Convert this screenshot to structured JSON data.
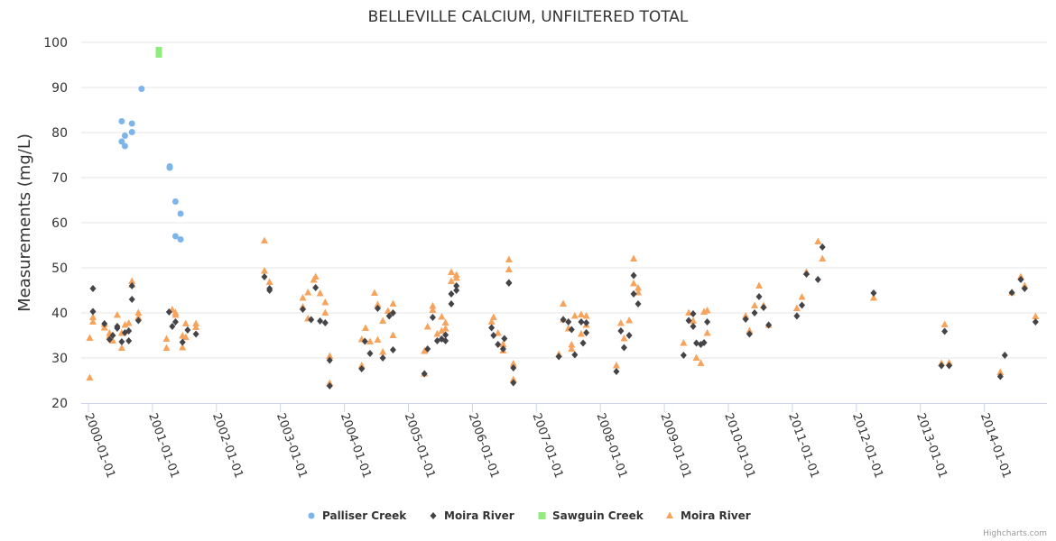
{
  "chart_data": {
    "type": "scatter",
    "title": "BELLEVILLE CALCIUM, UNFILTERED TOTAL",
    "xlabel": "",
    "ylabel": "Measurements (mg/L)",
    "ylim": [
      20,
      100
    ],
    "xlim": [
      "2000-01-01",
      "2014-12-15"
    ],
    "yticks": [
      20,
      30,
      40,
      50,
      60,
      70,
      80,
      90,
      100
    ],
    "xticks": [
      "2000-01-01",
      "2001-01-01",
      "2002-01-01",
      "2003-01-01",
      "2004-01-01",
      "2005-01-01",
      "2006-01-01",
      "2007-01-01",
      "2008-01-01",
      "2009-01-01",
      "2010-01-01",
      "2011-01-01",
      "2012-01-01",
      "2013-01-01",
      "2014-01-01"
    ],
    "grid": true,
    "legend_position": "bottom-center",
    "credits": "Highcharts.com",
    "series": [
      {
        "name": "Palliser Creek",
        "marker": "circle",
        "color": "#7cb5ec",
        "points": [
          [
            2000.52,
            82.5
          ],
          [
            2000.52,
            78.0
          ],
          [
            2000.57,
            79.3
          ],
          [
            2000.57,
            77.0
          ],
          [
            2000.68,
            82.0
          ],
          [
            2000.68,
            80.1
          ],
          [
            2000.83,
            89.7
          ],
          [
            2001.27,
            72.5
          ],
          [
            2001.27,
            72.2
          ],
          [
            2001.36,
            64.7
          ],
          [
            2001.36,
            57.0
          ],
          [
            2001.44,
            62.0
          ],
          [
            2001.44,
            56.3
          ]
        ]
      },
      {
        "name": "Moira River",
        "marker": "diamond",
        "color": "#434348",
        "points": [
          [
            2000.07,
            45.4
          ],
          [
            2000.07,
            40.3
          ],
          [
            2000.25,
            37.6
          ],
          [
            2000.33,
            34.1
          ],
          [
            2000.38,
            35.0
          ],
          [
            2000.45,
            37.0
          ],
          [
            2000.45,
            36.6
          ],
          [
            2000.52,
            33.6
          ],
          [
            2000.57,
            35.6
          ],
          [
            2000.63,
            33.8
          ],
          [
            2000.63,
            36.0
          ],
          [
            2000.68,
            46.0
          ],
          [
            2000.68,
            43.0
          ],
          [
            2000.78,
            38.3
          ],
          [
            2001.26,
            40.2
          ],
          [
            2001.31,
            37.0
          ],
          [
            2001.36,
            38.0
          ],
          [
            2001.47,
            33.5
          ],
          [
            2001.55,
            36.2
          ],
          [
            2001.68,
            35.3
          ],
          [
            2002.75,
            48.0
          ],
          [
            2002.83,
            45.4
          ],
          [
            2002.83,
            45.0
          ],
          [
            2003.35,
            40.8
          ],
          [
            2003.48,
            38.5
          ],
          [
            2003.55,
            45.6
          ],
          [
            2003.62,
            38.2
          ],
          [
            2003.7,
            37.8
          ],
          [
            2003.77,
            29.5
          ],
          [
            2003.77,
            23.8
          ],
          [
            2004.27,
            27.6
          ],
          [
            2004.32,
            33.7
          ],
          [
            2004.4,
            31.0
          ],
          [
            2004.52,
            41.0
          ],
          [
            2004.6,
            30.0
          ],
          [
            2004.7,
            39.3
          ],
          [
            2004.76,
            40.0
          ],
          [
            2004.76,
            31.8
          ],
          [
            2005.25,
            26.5
          ],
          [
            2005.3,
            32.0
          ],
          [
            2005.38,
            39.0
          ],
          [
            2005.45,
            33.8
          ],
          [
            2005.52,
            34.2
          ],
          [
            2005.58,
            35.1
          ],
          [
            2005.58,
            33.8
          ],
          [
            2005.67,
            44.2
          ],
          [
            2005.67,
            42.0
          ],
          [
            2005.75,
            46.0
          ],
          [
            2005.75,
            45.0
          ],
          [
            2006.3,
            36.7
          ],
          [
            2006.33,
            35.0
          ],
          [
            2006.4,
            33.0
          ],
          [
            2006.48,
            32.0
          ],
          [
            2006.5,
            34.3
          ],
          [
            2006.57,
            46.6
          ],
          [
            2006.57,
            46.7
          ],
          [
            2006.64,
            27.8
          ],
          [
            2006.64,
            24.5
          ],
          [
            2007.35,
            30.3
          ],
          [
            2007.42,
            38.5
          ],
          [
            2007.5,
            38.0
          ],
          [
            2007.55,
            36.3
          ],
          [
            2007.6,
            30.7
          ],
          [
            2007.7,
            38.0
          ],
          [
            2007.73,
            33.3
          ],
          [
            2007.78,
            37.8
          ],
          [
            2007.78,
            35.6
          ],
          [
            2008.25,
            27.0
          ],
          [
            2008.32,
            36.0
          ],
          [
            2008.37,
            32.3
          ],
          [
            2008.45,
            35.0
          ],
          [
            2008.52,
            48.3
          ],
          [
            2008.52,
            44.2
          ],
          [
            2008.59,
            42.0
          ],
          [
            2009.3,
            30.6
          ],
          [
            2009.38,
            38.3
          ],
          [
            2009.45,
            37.0
          ],
          [
            2009.45,
            39.8
          ],
          [
            2009.5,
            33.3
          ],
          [
            2009.57,
            33.0
          ],
          [
            2009.62,
            33.4
          ],
          [
            2009.67,
            38.0
          ],
          [
            2010.27,
            38.6
          ],
          [
            2010.33,
            35.3
          ],
          [
            2010.41,
            40.0
          ],
          [
            2010.48,
            43.6
          ],
          [
            2010.55,
            41.2
          ],
          [
            2010.63,
            37.3
          ],
          [
            2011.07,
            39.3
          ],
          [
            2011.15,
            41.7
          ],
          [
            2011.22,
            48.6
          ],
          [
            2011.4,
            47.4
          ],
          [
            2011.47,
            54.6
          ],
          [
            2012.27,
            44.4
          ],
          [
            2013.33,
            28.3
          ],
          [
            2013.38,
            35.9
          ],
          [
            2013.45,
            28.3
          ],
          [
            2014.25,
            25.9
          ],
          [
            2014.32,
            30.6
          ],
          [
            2014.43,
            44.5
          ],
          [
            2014.57,
            47.4
          ],
          [
            2014.63,
            45.4
          ],
          [
            2014.8,
            38.0
          ]
        ]
      },
      {
        "name": "Sawguin Creek",
        "marker": "square",
        "color": "#90ed7d",
        "points": [
          [
            2001.1,
            97.8
          ]
        ]
      },
      {
        "name": "Moira River",
        "marker": "triangle",
        "color": "#f7a35c",
        "points": [
          [
            2000.02,
            34.4
          ],
          [
            2000.02,
            25.6
          ],
          [
            2000.07,
            39.0
          ],
          [
            2000.07,
            38.0
          ],
          [
            2000.25,
            37.5
          ],
          [
            2000.25,
            36.7
          ],
          [
            2000.33,
            35.5
          ],
          [
            2000.33,
            34.9
          ],
          [
            2000.38,
            33.8
          ],
          [
            2000.45,
            39.5
          ],
          [
            2000.52,
            35.5
          ],
          [
            2000.52,
            32.2
          ],
          [
            2000.57,
            37.3
          ],
          [
            2000.63,
            37.7
          ],
          [
            2000.68,
            47.0
          ],
          [
            2000.68,
            46.2
          ],
          [
            2000.78,
            40.0
          ],
          [
            2000.78,
            39.0
          ],
          [
            2001.22,
            34.2
          ],
          [
            2001.22,
            32.2
          ],
          [
            2001.31,
            40.7
          ],
          [
            2001.36,
            40.0
          ],
          [
            2001.36,
            39.5
          ],
          [
            2001.47,
            34.9
          ],
          [
            2001.47,
            32.3
          ],
          [
            2001.52,
            37.6
          ],
          [
            2001.52,
            34.6
          ],
          [
            2001.68,
            37.6
          ],
          [
            2001.68,
            36.8
          ],
          [
            2002.75,
            56.0
          ],
          [
            2002.75,
            49.3
          ],
          [
            2002.83,
            46.8
          ],
          [
            2003.35,
            43.3
          ],
          [
            2003.35,
            41.3
          ],
          [
            2003.43,
            44.5
          ],
          [
            2003.43,
            38.7
          ],
          [
            2003.52,
            47.3
          ],
          [
            2003.55,
            48.0
          ],
          [
            2003.62,
            44.3
          ],
          [
            2003.7,
            42.3
          ],
          [
            2003.7,
            40.0
          ],
          [
            2003.77,
            30.4
          ],
          [
            2003.77,
            24.4
          ],
          [
            2004.27,
            34.1
          ],
          [
            2004.27,
            28.3
          ],
          [
            2004.33,
            36.6
          ],
          [
            2004.4,
            33.6
          ],
          [
            2004.47,
            44.4
          ],
          [
            2004.52,
            41.8
          ],
          [
            2004.52,
            34.0
          ],
          [
            2004.6,
            38.2
          ],
          [
            2004.6,
            31.3
          ],
          [
            2004.68,
            40.4
          ],
          [
            2004.76,
            42.0
          ],
          [
            2004.76,
            35.0
          ],
          [
            2005.25,
            31.5
          ],
          [
            2005.25,
            26.5
          ],
          [
            2005.3,
            36.9
          ],
          [
            2005.38,
            41.5
          ],
          [
            2005.38,
            40.6
          ],
          [
            2005.45,
            35.3
          ],
          [
            2005.52,
            39.1
          ],
          [
            2005.52,
            36.0
          ],
          [
            2005.58,
            37.8
          ],
          [
            2005.58,
            36.5
          ],
          [
            2005.67,
            49.0
          ],
          [
            2005.67,
            47.0
          ],
          [
            2005.75,
            48.4
          ],
          [
            2005.75,
            47.7
          ],
          [
            2006.3,
            38.0
          ],
          [
            2006.33,
            39.0
          ],
          [
            2006.4,
            35.5
          ],
          [
            2006.48,
            33.0
          ],
          [
            2006.48,
            31.6
          ],
          [
            2006.57,
            51.8
          ],
          [
            2006.57,
            49.6
          ],
          [
            2006.64,
            28.7
          ],
          [
            2006.64,
            25.2
          ],
          [
            2007.35,
            30.8
          ],
          [
            2007.42,
            42.0
          ],
          [
            2007.42,
            38.5
          ],
          [
            2007.5,
            36.5
          ],
          [
            2007.55,
            32.9
          ],
          [
            2007.55,
            32.0
          ],
          [
            2007.6,
            39.3
          ],
          [
            2007.7,
            39.6
          ],
          [
            2007.7,
            35.3
          ],
          [
            2007.78,
            39.3
          ],
          [
            2007.78,
            37.3
          ],
          [
            2008.25,
            28.3
          ],
          [
            2008.32,
            37.7
          ],
          [
            2008.37,
            34.3
          ],
          [
            2008.45,
            38.3
          ],
          [
            2008.52,
            52.0
          ],
          [
            2008.52,
            46.5
          ],
          [
            2008.59,
            45.5
          ],
          [
            2008.59,
            44.5
          ],
          [
            2009.3,
            33.3
          ],
          [
            2009.38,
            40.0
          ],
          [
            2009.45,
            38.2
          ],
          [
            2009.5,
            30.0
          ],
          [
            2009.57,
            28.8
          ],
          [
            2009.62,
            40.2
          ],
          [
            2009.67,
            40.5
          ],
          [
            2009.67,
            35.5
          ],
          [
            2010.27,
            39.3
          ],
          [
            2010.33,
            36.0
          ],
          [
            2010.41,
            41.6
          ],
          [
            2010.48,
            46.0
          ],
          [
            2010.55,
            41.6
          ],
          [
            2010.63,
            37.3
          ],
          [
            2011.07,
            41.0
          ],
          [
            2011.15,
            43.5
          ],
          [
            2011.22,
            49.0
          ],
          [
            2011.4,
            55.8
          ],
          [
            2011.47,
            52.0
          ],
          [
            2012.27,
            43.3
          ],
          [
            2013.33,
            28.8
          ],
          [
            2013.38,
            37.4
          ],
          [
            2013.45,
            28.9
          ],
          [
            2014.25,
            26.8
          ],
          [
            2014.43,
            44.5
          ],
          [
            2014.57,
            48.0
          ],
          [
            2014.63,
            46.0
          ],
          [
            2014.8,
            39.2
          ]
        ]
      }
    ]
  }
}
